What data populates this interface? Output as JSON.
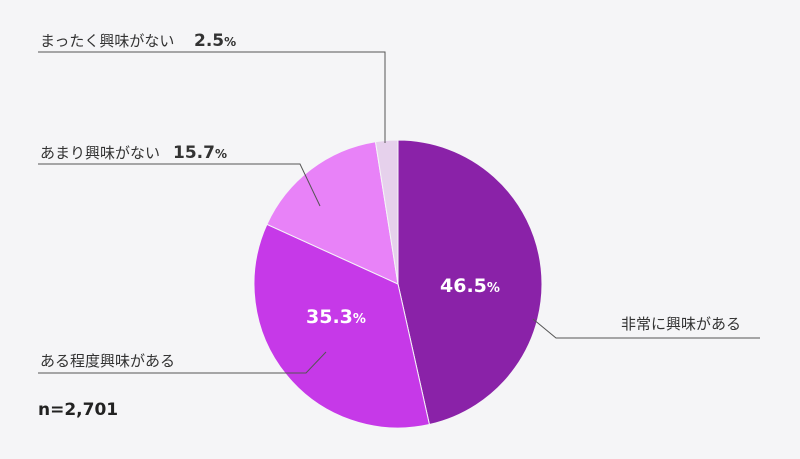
{
  "chart_data": {
    "type": "pie",
    "categories": [
      "非常に興味がある",
      "ある程度興味がある",
      "あまり興味がない",
      "まったく興味がない"
    ],
    "values": [
      46.5,
      35.3,
      15.7,
      2.5
    ],
    "value_labels": [
      "46.5",
      "35.3",
      "15.7",
      "2.5"
    ],
    "percent_sign": "%",
    "colors": [
      "#8a22a8",
      "#c639e8",
      "#e882f8",
      "#e6d1ec"
    ],
    "start_angle_deg": 0,
    "direction": "clockwise",
    "sample_size": "n=2,701"
  }
}
